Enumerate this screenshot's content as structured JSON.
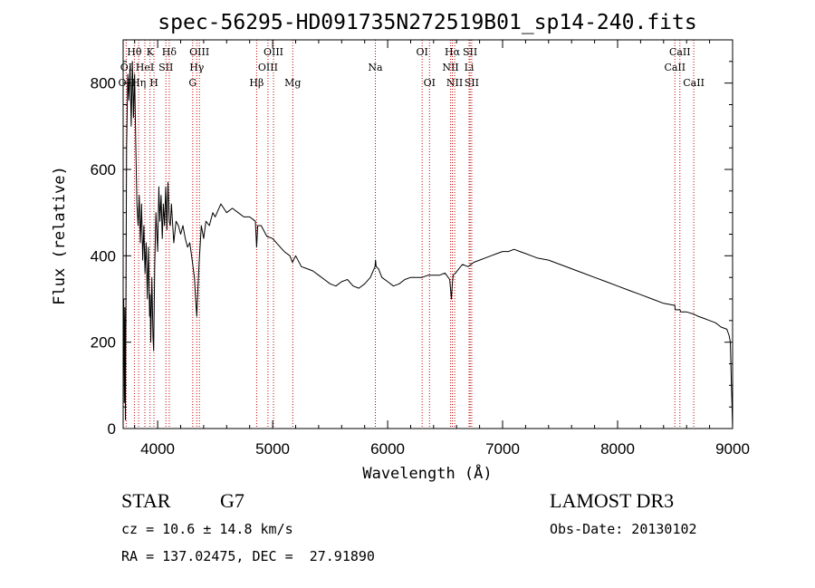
{
  "chart_data": {
    "type": "line",
    "title": "spec-56295-HD091735N272519B01_sp14-240.fits",
    "xlabel": "Wavelength (Å)",
    "ylabel": "Flux (relative)",
    "xlim": [
      3700,
      9000
    ],
    "ylim": [
      0,
      900
    ],
    "x_ticks": [
      4000,
      5000,
      6000,
      7000,
      8000,
      9000
    ],
    "y_ticks": [
      0,
      200,
      400,
      600,
      800
    ],
    "grid": false,
    "series": [
      {
        "name": "spectrum",
        "x": [
          3700,
          3705,
          3710,
          3715,
          3720,
          3730,
          3740,
          3750,
          3760,
          3770,
          3780,
          3790,
          3800,
          3810,
          3820,
          3830,
          3840,
          3850,
          3860,
          3870,
          3880,
          3890,
          3900,
          3910,
          3920,
          3930,
          3935,
          3940,
          3950,
          3960,
          3965,
          3968,
          3975,
          3985,
          4000,
          4010,
          4020,
          4030,
          4040,
          4050,
          4060,
          4070,
          4080,
          4090,
          4101,
          4110,
          4120,
          4140,
          4160,
          4180,
          4200,
          4220,
          4240,
          4260,
          4280,
          4300,
          4320,
          4330,
          4340,
          4350,
          4360,
          4380,
          4400,
          4420,
          4450,
          4480,
          4500,
          4550,
          4600,
          4650,
          4700,
          4750,
          4800,
          4850,
          4861,
          4870,
          4900,
          4950,
          5000,
          5050,
          5100,
          5150,
          5172,
          5200,
          5250,
          5300,
          5350,
          5400,
          5450,
          5500,
          5550,
          5600,
          5650,
          5700,
          5750,
          5800,
          5850,
          5890,
          5895,
          5900,
          5920,
          5950,
          6000,
          6050,
          6100,
          6150,
          6200,
          6250,
          6300,
          6350,
          6400,
          6450,
          6500,
          6540,
          6555,
          6563,
          6570,
          6590,
          6620,
          6650,
          6700,
          6750,
          6800,
          6850,
          6900,
          6950,
          7000,
          7050,
          7100,
          7150,
          7200,
          7250,
          7300,
          7400,
          7500,
          7600,
          7700,
          7800,
          7900,
          8000,
          8100,
          8200,
          8300,
          8400,
          8498,
          8500,
          8542,
          8550,
          8600,
          8662,
          8700,
          8750,
          8800,
          8850,
          8900,
          8950,
          8970,
          8980,
          8985,
          8990,
          8995,
          9000
        ],
        "y": [
          120,
          300,
          60,
          280,
          20,
          650,
          820,
          760,
          840,
          700,
          850,
          720,
          820,
          650,
          520,
          470,
          540,
          430,
          520,
          390,
          470,
          360,
          430,
          300,
          420,
          260,
          310,
          200,
          350,
          210,
          180,
          230,
          380,
          500,
          410,
          560,
          480,
          540,
          440,
          520,
          470,
          560,
          460,
          570,
          480,
          470,
          520,
          430,
          480,
          470,
          450,
          470,
          440,
          420,
          430,
          390,
          350,
          300,
          260,
          320,
          380,
          470,
          440,
          480,
          470,
          500,
          490,
          520,
          500,
          510,
          500,
          490,
          490,
          480,
          420,
          470,
          470,
          445,
          440,
          425,
          410,
          400,
          385,
          400,
          375,
          370,
          365,
          355,
          345,
          335,
          330,
          340,
          345,
          330,
          325,
          335,
          350,
          375,
          390,
          375,
          370,
          350,
          340,
          330,
          335,
          345,
          350,
          350,
          350,
          355,
          355,
          355,
          360,
          345,
          300,
          335,
          355,
          360,
          370,
          380,
          375,
          385,
          390,
          395,
          400,
          405,
          410,
          410,
          415,
          410,
          405,
          400,
          395,
          390,
          380,
          370,
          360,
          350,
          340,
          330,
          320,
          310,
          300,
          290,
          285,
          275,
          275,
          270,
          270,
          265,
          260,
          255,
          250,
          245,
          235,
          230,
          215,
          200,
          150,
          100,
          50,
          0
        ]
      }
    ],
    "line_labels": [
      {
        "text": "Hθ",
        "wavelength": 3798,
        "row": 1
      },
      {
        "text": "K",
        "wavelength": 3934,
        "row": 1
      },
      {
        "text": "Hδ",
        "wavelength": 4101,
        "row": 1
      },
      {
        "text": "OIII",
        "wavelength": 4363,
        "row": 1
      },
      {
        "text": "OIII",
        "wavelength": 5007,
        "row": 1
      },
      {
        "text": "OI",
        "wavelength": 6300,
        "row": 1
      },
      {
        "text": "Hα",
        "wavelength": 6563,
        "row": 1
      },
      {
        "text": "SII",
        "wavelength": 6717,
        "row": 1
      },
      {
        "text": "CaII",
        "wavelength": 8542,
        "row": 1
      },
      {
        "text": "OI",
        "wavelength": 3727,
        "row": 2
      },
      {
        "text": "HeI",
        "wavelength": 3889,
        "row": 2
      },
      {
        "text": "SII",
        "wavelength": 4072,
        "row": 2
      },
      {
        "text": "Hγ",
        "wavelength": 4340,
        "row": 2
      },
      {
        "text": "OIII",
        "wavelength": 4959,
        "row": 2
      },
      {
        "text": "Na",
        "wavelength": 5893,
        "row": 2
      },
      {
        "text": "NII",
        "wavelength": 6548,
        "row": 2
      },
      {
        "text": "Li",
        "wavelength": 6708,
        "row": 2
      },
      {
        "text": "CaII",
        "wavelength": 8498,
        "row": 2
      },
      {
        "text": "OII",
        "wavelength": 3727,
        "row": 3
      },
      {
        "text": "Hη",
        "wavelength": 3835,
        "row": 3
      },
      {
        "text": "H",
        "wavelength": 3968,
        "row": 3
      },
      {
        "text": "G",
        "wavelength": 4305,
        "row": 3
      },
      {
        "text": "Hβ",
        "wavelength": 4861,
        "row": 3
      },
      {
        "text": "Mg",
        "wavelength": 5175,
        "row": 3
      },
      {
        "text": "OI",
        "wavelength": 6364,
        "row": 3
      },
      {
        "text": "NII",
        "wavelength": 6583,
        "row": 3
      },
      {
        "text": "SII",
        "wavelength": 6731,
        "row": 3
      },
      {
        "text": "CaII",
        "wavelength": 8662,
        "row": 3
      }
    ],
    "line_markers": [
      3727,
      3798,
      3835,
      3889,
      3934,
      3968,
      4072,
      4101,
      4305,
      4340,
      4363,
      4861,
      4959,
      5007,
      5175,
      5893,
      6300,
      6364,
      6548,
      6563,
      6583,
      6708,
      6717,
      6731,
      8498,
      8542,
      8662
    ]
  },
  "info": {
    "object_type": "STAR",
    "subclass": "G7",
    "survey": "LAMOST DR3",
    "redshift": "cz = 10.6 ± 14.8 km/s",
    "obs_date": "Obs-Date: 20130102",
    "coords": "RA = 137.02475, DEC =  27.91890"
  }
}
